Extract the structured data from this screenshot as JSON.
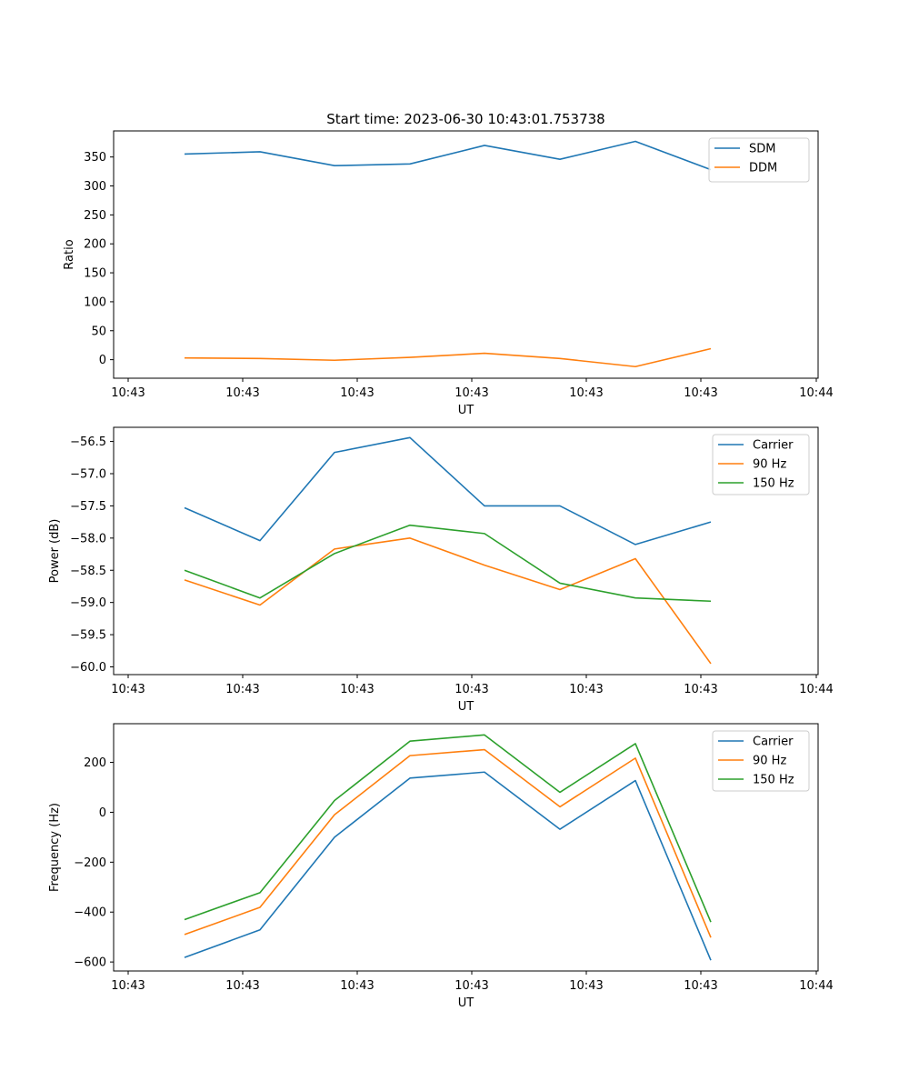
{
  "figure": {
    "title": "Start time: 2023-06-30 10:43:01.753738"
  },
  "colors": {
    "blue": "#1f77b4",
    "orange": "#ff7f0e",
    "green": "#2ca02c"
  },
  "chart_data": [
    {
      "type": "line",
      "title": "Start time: 2023-06-30 10:43:01.753738",
      "xlabel": "UT",
      "ylabel": "Ratio",
      "x_tick_labels": [
        "10:43",
        "10:43",
        "10:43",
        "10:43",
        "10:43",
        "10:43",
        "10:44"
      ],
      "y_ticks": [
        0,
        50,
        100,
        150,
        200,
        250,
        300,
        350
      ],
      "ylim": [
        -32,
        395
      ],
      "legend": "top-right",
      "grid": false,
      "series": [
        {
          "name": "SDM",
          "color": "#1f77b4",
          "values": [
            355,
            359,
            335,
            338,
            370,
            346,
            377,
            328
          ]
        },
        {
          "name": "DDM",
          "color": "#ff7f0e",
          "values": [
            3,
            2,
            -1,
            4,
            11,
            2,
            -12,
            19
          ]
        }
      ]
    },
    {
      "type": "line",
      "title": "",
      "xlabel": "UT",
      "ylabel": "Power (dB)",
      "x_tick_labels": [
        "10:43",
        "10:43",
        "10:43",
        "10:43",
        "10:43",
        "10:43",
        "10:44"
      ],
      "y_ticks": [
        -60.0,
        -59.5,
        -59.0,
        -58.5,
        -58.0,
        -57.5,
        -57.0,
        -56.5
      ],
      "y_tick_labels": [
        "−60.0",
        "−59.5",
        "−59.0",
        "−58.5",
        "−58.0",
        "−57.5",
        "−57.0",
        "−56.5"
      ],
      "ylim": [
        -60.12,
        -56.28
      ],
      "legend": "top-right",
      "grid": false,
      "series": [
        {
          "name": "Carrier",
          "color": "#1f77b4",
          "values": [
            -57.53,
            -58.04,
            -56.67,
            -56.44,
            -57.5,
            -57.5,
            -58.1,
            -57.75
          ]
        },
        {
          "name": "90 Hz",
          "color": "#ff7f0e",
          "values": [
            -58.65,
            -59.04,
            -58.17,
            -58.0,
            -58.42,
            -58.8,
            -58.32,
            -59.95
          ]
        },
        {
          "name": "150 Hz",
          "color": "#2ca02c",
          "values": [
            -58.5,
            -58.93,
            -58.24,
            -57.8,
            -57.93,
            -58.7,
            -58.93,
            -58.98
          ]
        }
      ]
    },
    {
      "type": "line",
      "title": "",
      "xlabel": "UT",
      "ylabel": "Frequency (Hz)",
      "x_tick_labels": [
        "10:43",
        "10:43",
        "10:43",
        "10:43",
        "10:43",
        "10:43",
        "10:44"
      ],
      "y_ticks": [
        -600,
        -400,
        -200,
        0,
        200
      ],
      "y_tick_labels": [
        "−600",
        "−400",
        "−200",
        "0",
        "200"
      ],
      "ylim": [
        -636,
        355
      ],
      "legend": "top-right",
      "grid": false,
      "series": [
        {
          "name": "Carrier",
          "color": "#1f77b4",
          "values": [
            -582,
            -471,
            -100,
            137,
            161,
            -68,
            127,
            -593
          ]
        },
        {
          "name": "90 Hz",
          "color": "#ff7f0e",
          "values": [
            -490,
            -381,
            -10,
            227,
            251,
            22,
            217,
            -502
          ]
        },
        {
          "name": "150 Hz",
          "color": "#2ca02c",
          "values": [
            -430,
            -322,
            47,
            285,
            310,
            80,
            275,
            -440
          ]
        }
      ]
    }
  ]
}
